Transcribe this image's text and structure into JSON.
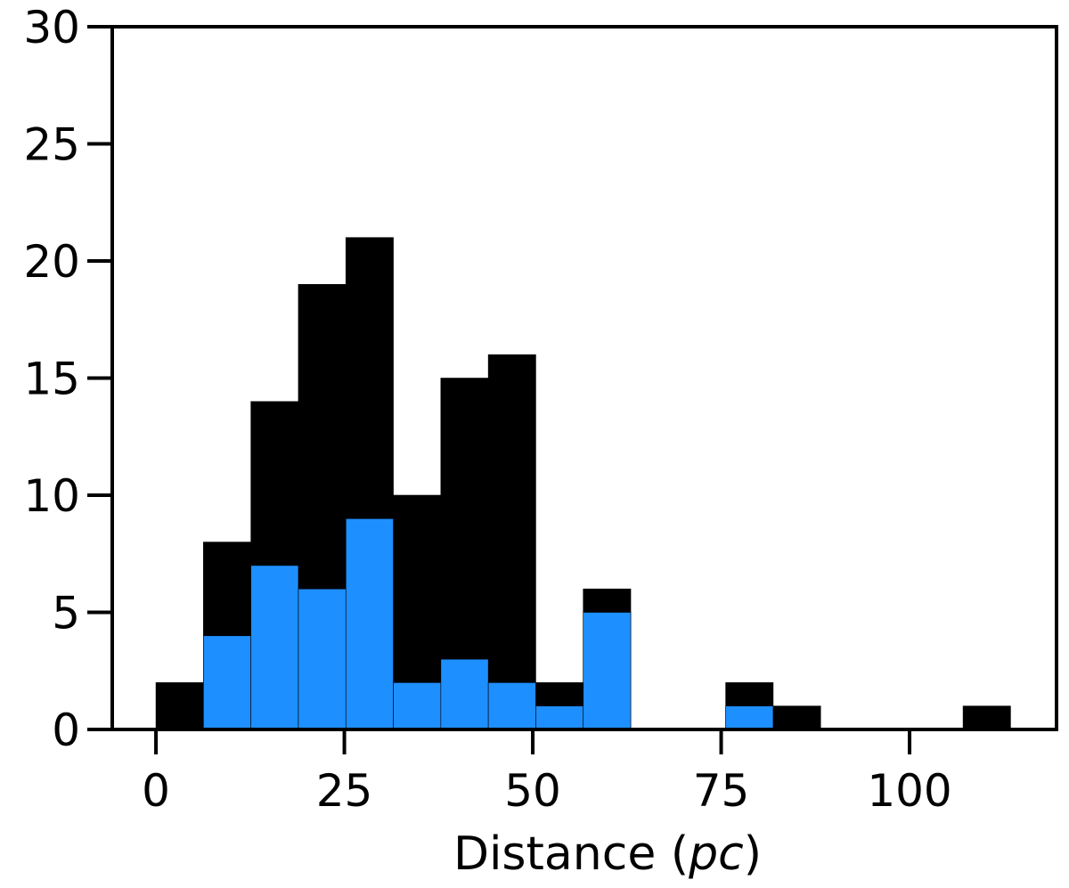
{
  "chart_data": {
    "type": "bar",
    "subtype": "stacked-histogram",
    "xlabel_main": "Distance (",
    "xlabel_italic": "pc",
    "xlabel_close": ")",
    "ylabel": "",
    "xlim": [
      -5.8,
      119.5
    ],
    "ylim": [
      0,
      30
    ],
    "xticks": [
      0,
      25,
      50,
      75,
      100
    ],
    "yticks": [
      0,
      5,
      10,
      15,
      20,
      25,
      30
    ],
    "bin_edges": [
      0,
      6.3,
      12.6,
      18.9,
      25.2,
      31.5,
      37.8,
      44.1,
      50.4,
      56.7,
      63.0,
      69.3,
      75.6,
      81.9,
      88.2,
      94.5,
      100.8,
      107.1,
      113.4
    ],
    "series": [
      {
        "color": "#000000",
        "values": [
          2,
          8,
          14,
          19,
          21,
          10,
          15,
          16,
          2,
          6,
          0,
          0,
          2,
          1,
          0,
          0,
          0,
          1
        ]
      },
      {
        "color": "#1e8fff",
        "values": [
          0,
          4,
          7,
          6,
          9,
          2,
          3,
          2,
          1,
          5,
          0,
          0,
          1,
          0,
          0,
          0,
          0,
          0
        ]
      }
    ],
    "grid": false,
    "legend": "none"
  }
}
